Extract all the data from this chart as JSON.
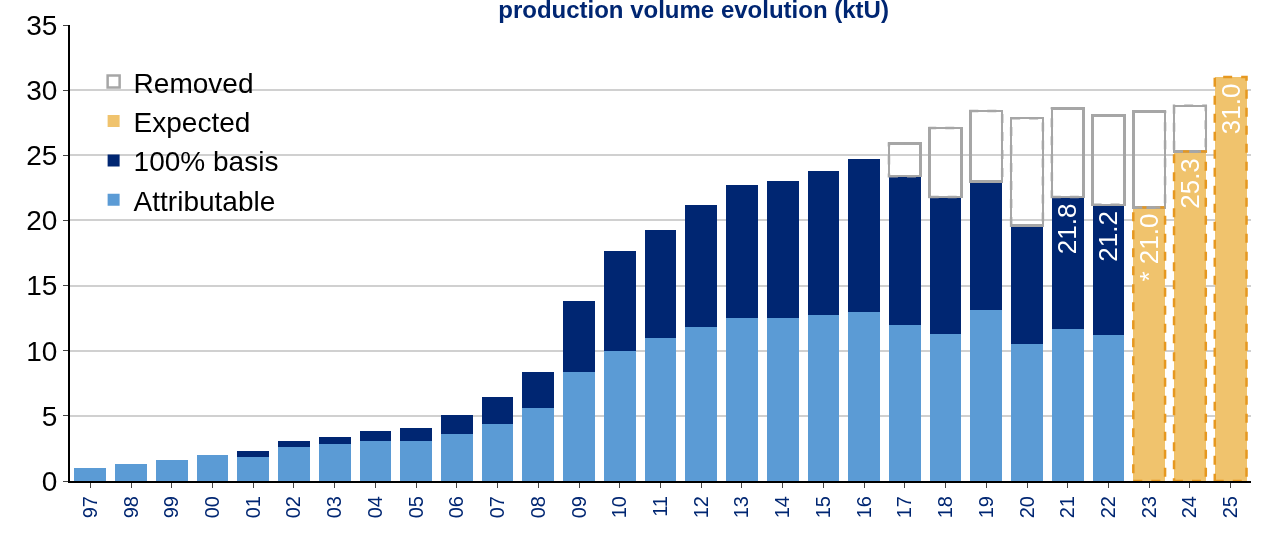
{
  "chart_data": {
    "type": "bar",
    "title": "production volume evolution (ktU)",
    "stacked": true,
    "categories": [
      "97",
      "98",
      "99",
      "00",
      "01",
      "02",
      "03",
      "04",
      "05",
      "06",
      "07",
      "08",
      "09",
      "10",
      "11",
      "12",
      "13",
      "14",
      "15",
      "16",
      "17",
      "18",
      "19",
      "20",
      "21",
      "22",
      "23",
      "24",
      "25"
    ],
    "series": [
      {
        "name": "Attributable",
        "color": "#5b9bd5",
        "values": [
          1.0,
          1.3,
          1.6,
          2.0,
          1.85,
          2.6,
          2.85,
          3.05,
          3.05,
          3.6,
          4.35,
          5.6,
          8.35,
          10.0,
          10.95,
          11.8,
          12.5,
          12.5,
          12.75,
          13.0,
          11.95,
          11.3,
          13.15,
          10.5,
          11.7,
          11.2,
          null,
          null,
          null
        ]
      },
      {
        "name": "100% basis",
        "color": "#002672",
        "values": [
          null,
          null,
          null,
          null,
          0.45,
          0.45,
          0.5,
          0.8,
          1.05,
          1.5,
          2.1,
          2.75,
          5.5,
          7.65,
          8.35,
          9.4,
          10.2,
          10.5,
          11.05,
          11.75,
          11.45,
          10.5,
          9.85,
          9.1,
          10.1,
          10.0,
          null,
          null,
          null
        ]
      },
      {
        "name": "Expected",
        "color": "#f0c36d",
        "line_style": "dashed",
        "values": [
          null,
          null,
          null,
          null,
          null,
          null,
          null,
          null,
          null,
          null,
          null,
          null,
          null,
          null,
          null,
          null,
          null,
          null,
          null,
          null,
          null,
          null,
          null,
          null,
          null,
          null,
          21.0,
          25.3,
          31.0
        ]
      },
      {
        "name": "Removed",
        "color": "#a6a6a6",
        "line_style": "dashed",
        "values": [
          null,
          null,
          null,
          null,
          null,
          null,
          null,
          null,
          null,
          null,
          null,
          null,
          null,
          null,
          null,
          null,
          null,
          null,
          null,
          null,
          2.5,
          5.3,
          5.4,
          8.25,
          6.8,
          6.85,
          7.35,
          3.5,
          null
        ]
      }
    ],
    "annotations": [
      {
        "text": "21.8",
        "x": "21",
        "y": 21.8
      },
      {
        "text": "21.2",
        "x": "22",
        "y": 21.2
      },
      {
        "text": "* 21.0",
        "x": "23",
        "y": 21.0
      },
      {
        "text": "25.3",
        "x": "24",
        "y": 25.3
      },
      {
        "text": "31.0",
        "x": "25",
        "y": 31.0
      }
    ],
    "ylim": [
      0,
      35
    ],
    "yticks": [
      0,
      5,
      10,
      15,
      20,
      25,
      30,
      35
    ],
    "grid": "y",
    "legend": "top left"
  }
}
